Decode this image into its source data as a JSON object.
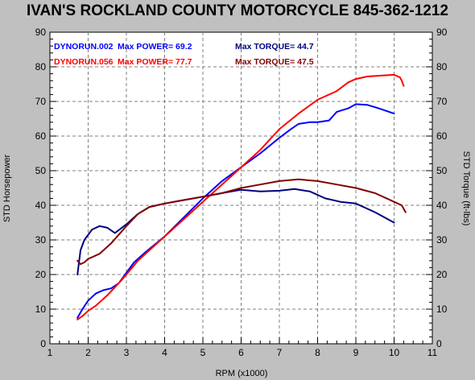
{
  "chart_data": {
    "type": "line",
    "title": "IVAN'S ROCKLAND COUNTY MOTORCYCLE 845-362-1212",
    "xlabel": "RPM (x1000)",
    "ylabel_left": "STD Horsepower",
    "ylabel_right": "STD Torque (ft-lbs)",
    "xlim": [
      1,
      11
    ],
    "ylim": [
      0,
      90
    ],
    "x_ticks": [
      "1",
      "2",
      "3",
      "4",
      "5",
      "6",
      "7",
      "8",
      "9",
      "10",
      "11"
    ],
    "y_ticks": [
      "0",
      "10",
      "20",
      "30",
      "40",
      "50",
      "60",
      "70",
      "80",
      "90"
    ],
    "grid": true,
    "legend": [
      {
        "run": "DYNORUN.002",
        "power": "Max POWER= 69.2",
        "torque": "Max TORQUE= 44.7",
        "color": "#0000ff",
        "torque_color": "#000080"
      },
      {
        "run": "DYNORUN.056",
        "power": "Max POWER= 77.7",
        "torque": "Max TORQUE= 47.5",
        "color": "#ff0000",
        "torque_color": "#800000"
      }
    ],
    "series": [
      {
        "color": "#0000ff",
        "points": [
          [
            1.72,
            7.5
          ],
          [
            1.85,
            10
          ],
          [
            2.0,
            12.5
          ],
          [
            2.2,
            14.5
          ],
          [
            2.4,
            15.5
          ],
          [
            2.6,
            16
          ],
          [
            2.8,
            17.5
          ],
          [
            3.0,
            20.5
          ],
          [
            3.2,
            23.5
          ],
          [
            3.5,
            26.5
          ],
          [
            4.0,
            31
          ],
          [
            4.5,
            36.5
          ],
          [
            5.0,
            42
          ],
          [
            5.5,
            47
          ],
          [
            6.0,
            51
          ],
          [
            6.5,
            55
          ],
          [
            7.0,
            59.5
          ],
          [
            7.3,
            62
          ],
          [
            7.5,
            63.5
          ],
          [
            7.8,
            64
          ],
          [
            8.0,
            64
          ],
          [
            8.3,
            64.5
          ],
          [
            8.5,
            67
          ],
          [
            8.8,
            68
          ],
          [
            9.0,
            69.2
          ],
          [
            9.3,
            69
          ],
          [
            9.6,
            68
          ],
          [
            10.0,
            66.5
          ]
        ]
      },
      {
        "color": "#000080",
        "points": [
          [
            1.72,
            20
          ],
          [
            1.8,
            27
          ],
          [
            1.9,
            30
          ],
          [
            2.1,
            33
          ],
          [
            2.3,
            34
          ],
          [
            2.5,
            33.5
          ],
          [
            2.7,
            32
          ],
          [
            3.0,
            34.5
          ],
          [
            3.3,
            37.5
          ],
          [
            3.6,
            39.5
          ],
          [
            4.0,
            40.5
          ],
          [
            4.5,
            41.5
          ],
          [
            5.0,
            42.5
          ],
          [
            5.5,
            43.5
          ],
          [
            6.0,
            44.5
          ],
          [
            6.5,
            44
          ],
          [
            7.0,
            44.2
          ],
          [
            7.4,
            44.7
          ],
          [
            7.8,
            44
          ],
          [
            8.2,
            42
          ],
          [
            8.6,
            41
          ],
          [
            9.0,
            40.5
          ],
          [
            9.5,
            38
          ],
          [
            10.0,
            35
          ]
        ]
      },
      {
        "color": "#ff0000",
        "points": [
          [
            1.72,
            7
          ],
          [
            1.85,
            8
          ],
          [
            2.0,
            9.5
          ],
          [
            2.2,
            11
          ],
          [
            2.5,
            14
          ],
          [
            2.8,
            17.5
          ],
          [
            3.0,
            20
          ],
          [
            3.3,
            24
          ],
          [
            3.6,
            27
          ],
          [
            4.0,
            31
          ],
          [
            4.5,
            36
          ],
          [
            5.0,
            41
          ],
          [
            5.5,
            46
          ],
          [
            6.0,
            51
          ],
          [
            6.5,
            56
          ],
          [
            7.0,
            62
          ],
          [
            7.5,
            66.5
          ],
          [
            8.0,
            70.5
          ],
          [
            8.5,
            73
          ],
          [
            8.8,
            75.5
          ],
          [
            9.0,
            76.5
          ],
          [
            9.3,
            77.2
          ],
          [
            9.7,
            77.5
          ],
          [
            10.0,
            77.7
          ],
          [
            10.15,
            77
          ],
          [
            10.2,
            76
          ],
          [
            10.25,
            74.5
          ]
        ]
      },
      {
        "color": "#800000",
        "points": [
          [
            1.72,
            24
          ],
          [
            1.8,
            23
          ],
          [
            1.9,
            23.5
          ],
          [
            2.0,
            24.5
          ],
          [
            2.3,
            26
          ],
          [
            2.6,
            29
          ],
          [
            3.0,
            34
          ],
          [
            3.3,
            37.5
          ],
          [
            3.6,
            39.5
          ],
          [
            4.0,
            40.5
          ],
          [
            4.5,
            41.5
          ],
          [
            5.0,
            42.5
          ],
          [
            5.5,
            43.5
          ],
          [
            6.0,
            45
          ],
          [
            6.5,
            46
          ],
          [
            7.0,
            47
          ],
          [
            7.5,
            47.5
          ],
          [
            8.0,
            47
          ],
          [
            8.5,
            46
          ],
          [
            9.0,
            45
          ],
          [
            9.5,
            43.5
          ],
          [
            10.0,
            41
          ],
          [
            10.2,
            40
          ],
          [
            10.3,
            38
          ]
        ]
      }
    ]
  }
}
